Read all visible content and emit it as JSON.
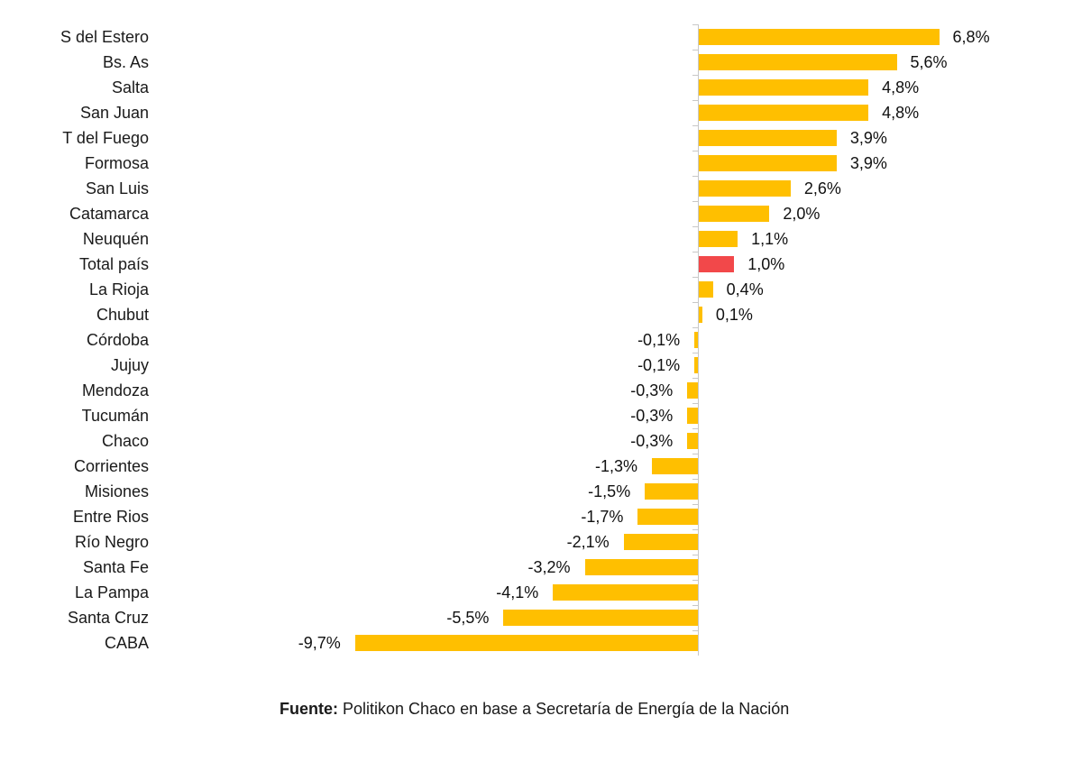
{
  "chart_data": {
    "type": "bar",
    "orientation": "horizontal",
    "title": "",
    "xlabel": "",
    "ylabel": "",
    "value_format": "percent, comma decimal",
    "xlim": [
      -9.7,
      6.8
    ],
    "grid": false,
    "legend": null,
    "categories": [
      "S del Estero",
      "Bs. As",
      "Salta",
      "San Juan",
      "T del Fuego",
      "Formosa",
      "San Luis",
      "Catamarca",
      "Neuquén",
      "Total país",
      "La Rioja",
      "Chubut",
      "Córdoba",
      "Jujuy",
      "Mendoza",
      "Tucumán",
      "Chaco",
      "Corrientes",
      "Misiones",
      "Entre Rios",
      "Río Negro",
      "Santa Fe",
      "La Pampa",
      "Santa Cruz",
      "CABA"
    ],
    "values": [
      6.8,
      5.6,
      4.8,
      4.8,
      3.9,
      3.9,
      2.6,
      2.0,
      1.1,
      1.0,
      0.4,
      0.1,
      -0.1,
      -0.1,
      -0.3,
      -0.3,
      -0.3,
      -1.3,
      -1.5,
      -1.7,
      -2.1,
      -3.2,
      -4.1,
      -5.5,
      -9.7
    ],
    "labels": [
      "6,8%",
      "5,6%",
      "4,8%",
      "4,8%",
      "3,9%",
      "3,9%",
      "2,6%",
      "2,0%",
      "1,1%",
      "1,0%",
      "0,4%",
      "0,1%",
      "-0,1%",
      "-0,1%",
      "-0,3%",
      "-0,3%",
      "-0,3%",
      "-1,3%",
      "-1,5%",
      "-1,7%",
      "-2,1%",
      "-3,2%",
      "-4,1%",
      "-5,5%",
      "-9,7%"
    ],
    "highlight": "Total país",
    "colors": {
      "default": "#FFBF00",
      "highlight": "#F2484A",
      "axis": "#C8C8C8",
      "text": "#1A1A1A"
    }
  },
  "source": {
    "prefix": "Fuente:",
    "text": " Politikon Chaco en base a Secretaría de Energía de la Nación"
  }
}
